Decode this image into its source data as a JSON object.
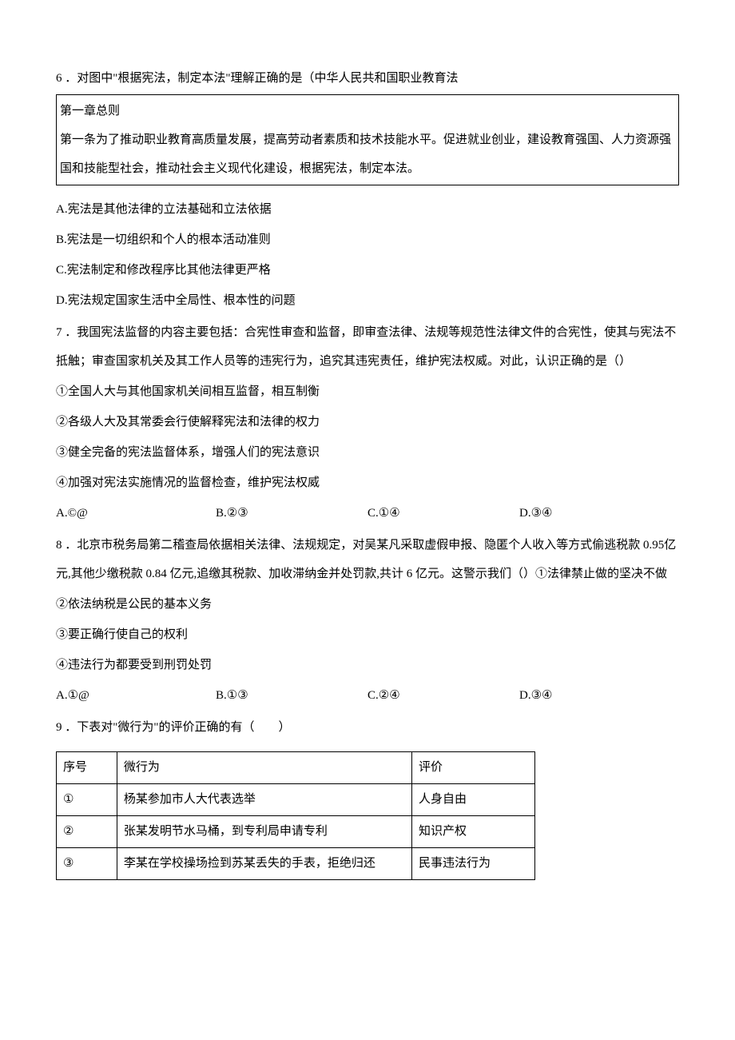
{
  "q6": {
    "stem": "6 ．对图中\"根据宪法，制定本法\"理解正确的是（中华人民共和国职业教育法",
    "box_line1": "第一章总则",
    "box_line2": "第一条为了推动职业教育高质量发展，提高劳动者素质和技术技能水平。促进就业创业，建设教育强国、人力资源强国和技能型社会，推动社会主义现代化建设，根据宪法，制定本法。",
    "optA": "A.宪法是其他法律的立法基础和立法依据",
    "optB": "B.宪法是一切组织和个人的根本活动准则",
    "optC": "C.宪法制定和修改程序比其他法律更严格",
    "optD": "D.宪法规定国家生活中全局性、根本性的问题"
  },
  "q7": {
    "stem": "7 ．我国宪法监督的内容主要包括：合宪性审查和监督，即审查法律、法规等规范性法律文件的合宪性，使其与宪法不抵触；审查国家机关及其工作人员等的违宪行为，追究其违宪责任，维护宪法权威。对此，认识正确的是（）",
    "s1": "①全国人大与其他国家机关间相互监督，相互制衡",
    "s2": "②各级人大及其常委会行使解释宪法和法律的权力",
    "s3": "③健全完备的宪法监督体系，增强人们的宪法意识",
    "s4": "④加强对宪法实施情况的监督检查，维护宪法权威",
    "optA": "A.©@",
    "optB": "B.②③",
    "optC": "C.①④",
    "optD": "D.③④"
  },
  "q8": {
    "stem": "8 ．北京市税务局第二稽查局依据相关法律、法规规定，对吴某凡采取虚假申报、隐匿个人收入等方式偷逃税款 0.95亿元,其他少缴税款 0.84 亿元,追缴其税款、加收滞纳金并处罚款,共计 6 亿元。这警示我们（）①法律禁止做的坚决不做",
    "s2": "②依法纳税是公民的基本义务",
    "s3": "③要正确行使自己的权利",
    "s4": "④违法行为都要受到刑罚处罚",
    "optA": "A.①@",
    "optB": "B.①③",
    "optC": "C.②④",
    "optD": "D.③④"
  },
  "q9": {
    "stem": "9 ．下表对\"微行为\"的评价正确的有（　　）",
    "table": {
      "headers": [
        "序号",
        "微行为",
        "评价"
      ],
      "rows": [
        [
          "①",
          "杨某参加市人大代表选举",
          "人身自由"
        ],
        [
          "②",
          "张某发明节水马桶，到专利局申请专利",
          "知识产权"
        ],
        [
          "③",
          "李某在学校操场捡到苏某丢失的手表，拒绝归还",
          "民事违法行为"
        ]
      ]
    }
  }
}
